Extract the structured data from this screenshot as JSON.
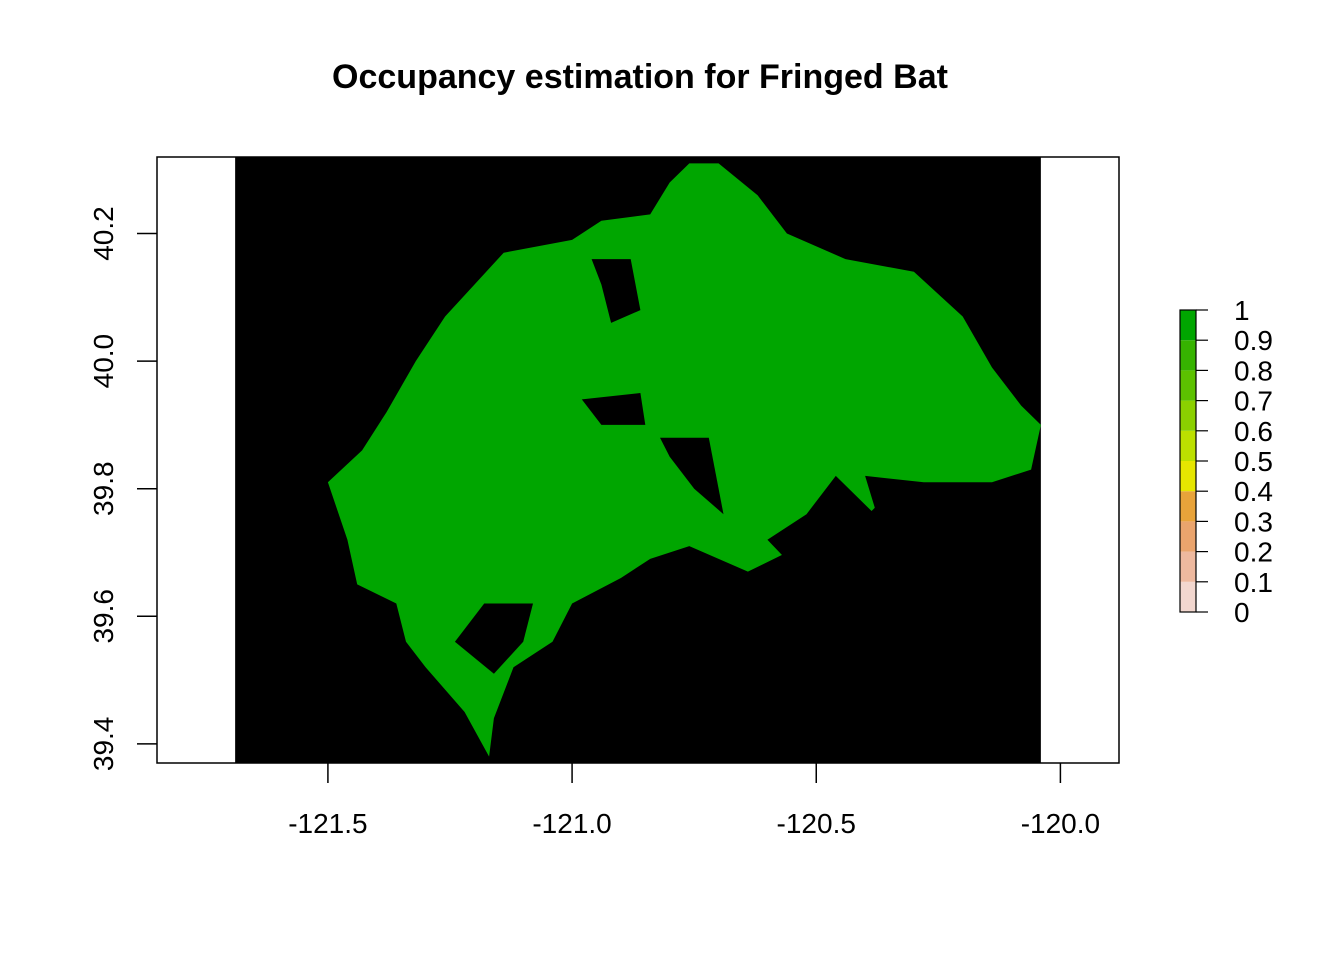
{
  "title": "Occupancy estimation for Fringed Bat",
  "map": {
    "xlim": [
      -121.85,
      -119.88
    ],
    "ylim": [
      39.37,
      40.32
    ],
    "raster_extent_x": [
      -121.69,
      -120.04
    ],
    "x_ticks": [
      {
        "value": -121.5,
        "label": "-121.5"
      },
      {
        "value": -121.0,
        "label": "-121.0"
      },
      {
        "value": -120.5,
        "label": "-120.5"
      },
      {
        "value": -120.0,
        "label": "-120.0"
      }
    ],
    "y_ticks": [
      {
        "value": 39.4,
        "label": "39.4"
      },
      {
        "value": 39.6,
        "label": "39.6"
      },
      {
        "value": 39.8,
        "label": "39.8"
      },
      {
        "value": 40.0,
        "label": "40.0"
      },
      {
        "value": 40.2,
        "label": "40.2"
      }
    ],
    "background_color": "#000000",
    "occupied_color": "#00A600",
    "occupancy_value": 1,
    "region_outline": [
      [
        -120.76,
        40.31
      ],
      [
        -120.7,
        40.31
      ],
      [
        -120.62,
        40.26
      ],
      [
        -120.56,
        40.2
      ],
      [
        -120.44,
        40.16
      ],
      [
        -120.3,
        40.14
      ],
      [
        -120.2,
        40.07
      ],
      [
        -120.14,
        39.99
      ],
      [
        -120.08,
        39.93
      ],
      [
        -120.04,
        39.9
      ],
      [
        -120.06,
        39.83
      ],
      [
        -120.14,
        39.81
      ],
      [
        -120.28,
        39.81
      ],
      [
        -120.4,
        39.82
      ],
      [
        -120.38,
        39.77
      ],
      [
        -120.46,
        39.71
      ],
      [
        -120.5,
        39.66
      ],
      [
        -120.56,
        39.7
      ],
      [
        -120.64,
        39.67
      ],
      [
        -120.76,
        39.71
      ],
      [
        -120.84,
        39.69
      ],
      [
        -120.9,
        39.66
      ],
      [
        -121.0,
        39.62
      ],
      [
        -121.04,
        39.56
      ],
      [
        -121.12,
        39.52
      ],
      [
        -121.16,
        39.44
      ],
      [
        -121.17,
        39.38
      ],
      [
        -121.22,
        39.45
      ],
      [
        -121.3,
        39.52
      ],
      [
        -121.34,
        39.56
      ],
      [
        -121.36,
        39.62
      ],
      [
        -121.44,
        39.65
      ],
      [
        -121.46,
        39.72
      ],
      [
        -121.5,
        39.81
      ],
      [
        -121.43,
        39.86
      ],
      [
        -121.38,
        39.92
      ],
      [
        -121.32,
        40.0
      ],
      [
        -121.26,
        40.07
      ],
      [
        -121.2,
        40.12
      ],
      [
        -121.14,
        40.17
      ],
      [
        -121.0,
        40.19
      ],
      [
        -120.94,
        40.22
      ],
      [
        -120.84,
        40.23
      ],
      [
        -120.8,
        40.28
      ]
    ],
    "unoccupied_patches": [
      [
        [
          -120.96,
          40.16
        ],
        [
          -120.88,
          40.16
        ],
        [
          -120.86,
          40.08
        ],
        [
          -120.92,
          40.06
        ],
        [
          -120.94,
          40.12
        ]
      ],
      [
        [
          -120.98,
          39.94
        ],
        [
          -120.86,
          39.95
        ],
        [
          -120.85,
          39.9
        ],
        [
          -120.94,
          39.9
        ]
      ],
      [
        [
          -120.82,
          39.88
        ],
        [
          -120.72,
          39.88
        ],
        [
          -120.69,
          39.76
        ],
        [
          -120.75,
          39.8
        ],
        [
          -120.8,
          39.85
        ]
      ],
      [
        [
          -120.46,
          39.82
        ],
        [
          -120.38,
          39.76
        ],
        [
          -120.5,
          39.64
        ],
        [
          -120.6,
          39.72
        ],
        [
          -120.52,
          39.76
        ]
      ],
      [
        [
          -121.18,
          39.62
        ],
        [
          -121.08,
          39.62
        ],
        [
          -121.1,
          39.56
        ],
        [
          -121.16,
          39.51
        ],
        [
          -121.24,
          39.56
        ]
      ]
    ]
  },
  "legend": {
    "labels": [
      "0",
      "0.1",
      "0.2",
      "0.3",
      "0.4",
      "0.5",
      "0.6",
      "0.7",
      "0.8",
      "0.9",
      "1"
    ],
    "colors": [
      "#F2F2F2",
      "#F2D7CF",
      "#EEB99F",
      "#EAA46D",
      "#E8A33A",
      "#E6E600",
      "#BCE000",
      "#8BD000",
      "#5CC100",
      "#36B300",
      "#00A600"
    ]
  }
}
